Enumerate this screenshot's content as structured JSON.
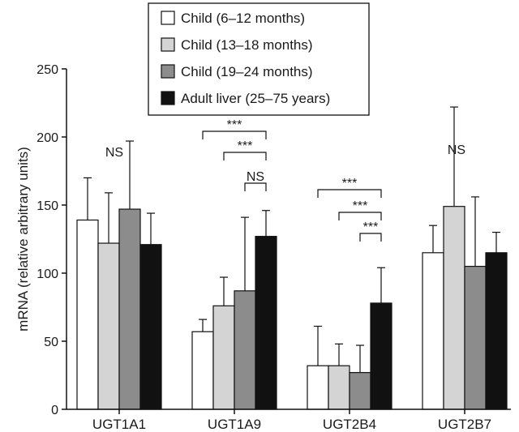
{
  "chart_data": {
    "type": "bar",
    "title": "",
    "xlabel": "",
    "ylabel": "mRNA (relative arbitrary units)",
    "ylim": [
      0,
      250
    ],
    "yticks": [
      0,
      50,
      100,
      150,
      200,
      250
    ],
    "categories": [
      "UGT1A1",
      "UGT1A9",
      "UGT2B4",
      "UGT2B7"
    ],
    "series": [
      {
        "name": "Child (6–12 months)",
        "color": "#ffffff",
        "values": [
          139,
          57,
          32,
          115
        ],
        "errors": [
          31,
          9,
          29,
          20
        ]
      },
      {
        "name": "Child (13–18 months)",
        "color": "#d4d4d4",
        "values": [
          122,
          76,
          32,
          149
        ],
        "errors": [
          37,
          21,
          16,
          73
        ]
      },
      {
        "name": "Child (19–24 months)",
        "color": "#8c8c8c",
        "values": [
          147,
          87,
          27,
          105
        ],
        "errors": [
          50,
          54,
          20,
          51
        ]
      },
      {
        "name": "Adult liver (25–75 years)",
        "color": "#111111",
        "values": [
          121,
          127,
          78,
          115
        ],
        "errors": [
          23,
          19,
          26,
          15
        ]
      }
    ],
    "annotations": [
      {
        "category": 0,
        "label": "NS"
      },
      {
        "category": 1,
        "from": 0,
        "to": 3,
        "label": "***"
      },
      {
        "category": 1,
        "from": 1,
        "to": 3,
        "label": "***"
      },
      {
        "category": 1,
        "from": 2,
        "to": 3,
        "label": "NS"
      },
      {
        "category": 2,
        "from": 0,
        "to": 3,
        "label": "***"
      },
      {
        "category": 2,
        "from": 1,
        "to": 3,
        "label": "***"
      },
      {
        "category": 2,
        "from": 2,
        "to": 3,
        "label": "***"
      },
      {
        "category": 3,
        "label": "NS"
      }
    ],
    "legend_position": "top-center",
    "grid": false
  }
}
